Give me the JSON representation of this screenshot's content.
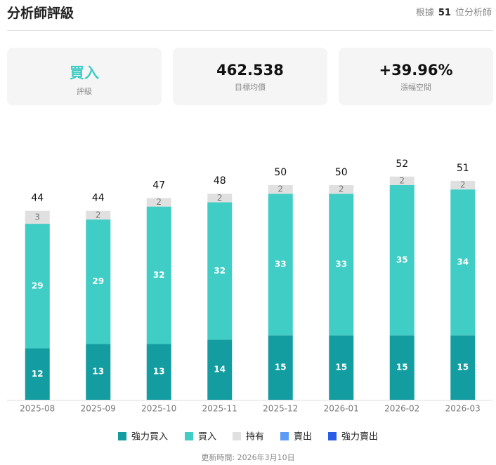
{
  "header": {
    "title": "分析師評級",
    "analyst_prefix": "根據",
    "analyst_count": 51,
    "analyst_suffix": "位分析師"
  },
  "cards": [
    {
      "value": "買入",
      "label": "評級"
    },
    {
      "value": "462.538",
      "label": "目標均價"
    },
    {
      "value": "+39.96%",
      "label": "漲幅空間"
    }
  ],
  "chart_data": {
    "type": "bar",
    "stacked": true,
    "categories": [
      "2025-08",
      "2025-09",
      "2025-10",
      "2025-11",
      "2025-12",
      "2026-01",
      "2026-02",
      "2026-03"
    ],
    "series": [
      {
        "name": "強力買入",
        "color": "#139da0",
        "values": [
          12,
          13,
          13,
          14,
          15,
          15,
          15,
          15
        ]
      },
      {
        "name": "買入",
        "color": "#3fcdc5",
        "values": [
          29,
          29,
          32,
          32,
          33,
          33,
          35,
          34
        ]
      },
      {
        "name": "持有",
        "color": "#e0e0e0",
        "values": [
          3,
          2,
          2,
          2,
          2,
          2,
          2,
          2
        ]
      },
      {
        "name": "賣出",
        "color": "#5b9cf6",
        "values": [
          0,
          0,
          0,
          0,
          0,
          0,
          0,
          0
        ]
      },
      {
        "name": "強力賣出",
        "color": "#2b5ce6",
        "values": [
          0,
          0,
          0,
          0,
          0,
          0,
          0,
          0
        ]
      }
    ],
    "totals": [
      44,
      44,
      47,
      48,
      50,
      50,
      52,
      51
    ]
  },
  "footer": "更新時間: 2026年3月10日"
}
